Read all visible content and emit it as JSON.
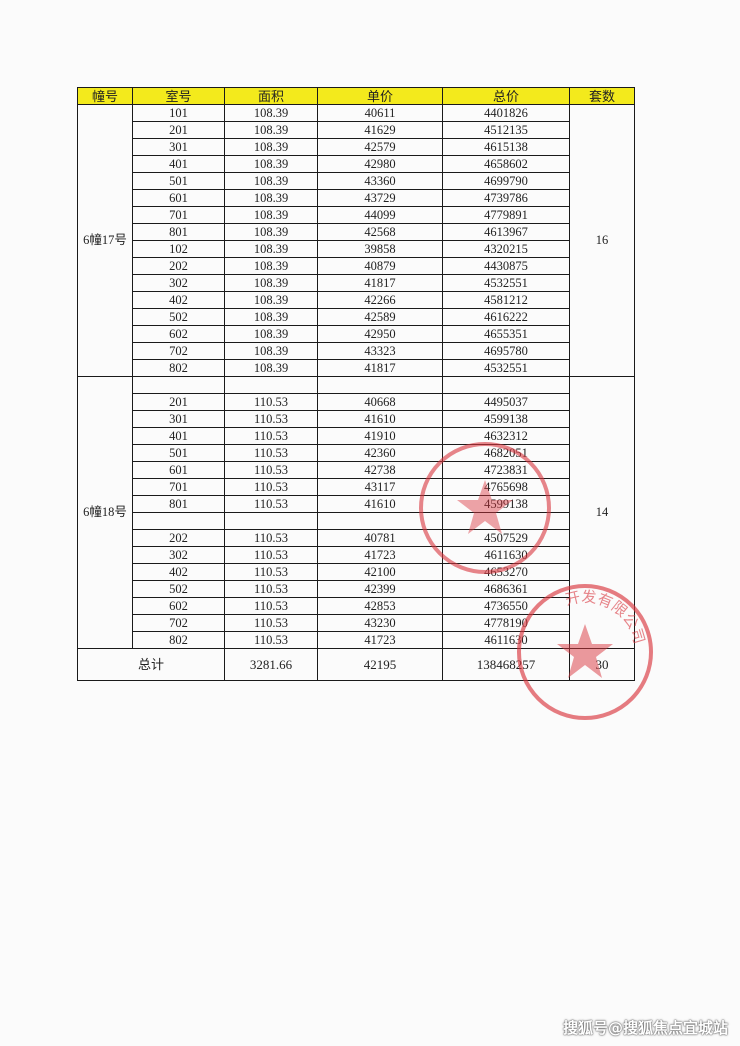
{
  "table": {
    "headers": [
      "幢号",
      "室号",
      "面积",
      "单价",
      "总价",
      "套数"
    ],
    "header_color": "#f3ea1c",
    "groups": [
      {
        "building": "6幢17号",
        "count": "16",
        "rows": [
          [
            "101",
            "108.39",
            "40611",
            "4401826"
          ],
          [
            "201",
            "108.39",
            "41629",
            "4512135"
          ],
          [
            "301",
            "108.39",
            "42579",
            "4615138"
          ],
          [
            "401",
            "108.39",
            "42980",
            "4658602"
          ],
          [
            "501",
            "108.39",
            "43360",
            "4699790"
          ],
          [
            "601",
            "108.39",
            "43729",
            "4739786"
          ],
          [
            "701",
            "108.39",
            "44099",
            "4779891"
          ],
          [
            "801",
            "108.39",
            "42568",
            "4613967"
          ],
          [
            "102",
            "108.39",
            "39858",
            "4320215"
          ],
          [
            "202",
            "108.39",
            "40879",
            "4430875"
          ],
          [
            "302",
            "108.39",
            "41817",
            "4532551"
          ],
          [
            "402",
            "108.39",
            "42266",
            "4581212"
          ],
          [
            "502",
            "108.39",
            "42589",
            "4616222"
          ],
          [
            "602",
            "108.39",
            "42950",
            "4655351"
          ],
          [
            "702",
            "108.39",
            "43323",
            "4695780"
          ],
          [
            "802",
            "108.39",
            "41817",
            "4532551"
          ]
        ]
      },
      {
        "building": "6幢18号",
        "count": "14",
        "rows": [
          [
            "",
            "",
            "",
            ""
          ],
          [
            "201",
            "110.53",
            "40668",
            "4495037"
          ],
          [
            "301",
            "110.53",
            "41610",
            "4599138"
          ],
          [
            "401",
            "110.53",
            "41910",
            "4632312"
          ],
          [
            "501",
            "110.53",
            "42360",
            "4682051"
          ],
          [
            "601",
            "110.53",
            "42738",
            "4723831"
          ],
          [
            "701",
            "110.53",
            "43117",
            "4765698"
          ],
          [
            "801",
            "110.53",
            "41610",
            "4599138"
          ],
          [
            "",
            "",
            "",
            ""
          ],
          [
            "202",
            "110.53",
            "40781",
            "4507529"
          ],
          [
            "302",
            "110.53",
            "41723",
            "4611630"
          ],
          [
            "402",
            "110.53",
            "42100",
            "4653270"
          ],
          [
            "502",
            "110.53",
            "42399",
            "4686361"
          ],
          [
            "602",
            "110.53",
            "42853",
            "4736550"
          ],
          [
            "702",
            "110.53",
            "43230",
            "4778190"
          ],
          [
            "802",
            "110.53",
            "41723",
            "4611630"
          ]
        ]
      }
    ],
    "total": {
      "label": "总计",
      "area": "3281.66",
      "unit_price": "42195",
      "total_price": "138468257",
      "count": "30"
    }
  },
  "stamps": {
    "color": "#d9363e",
    "text_2": "开发有限公司"
  },
  "watermark": "搜狐号@搜狐焦点宜城站"
}
